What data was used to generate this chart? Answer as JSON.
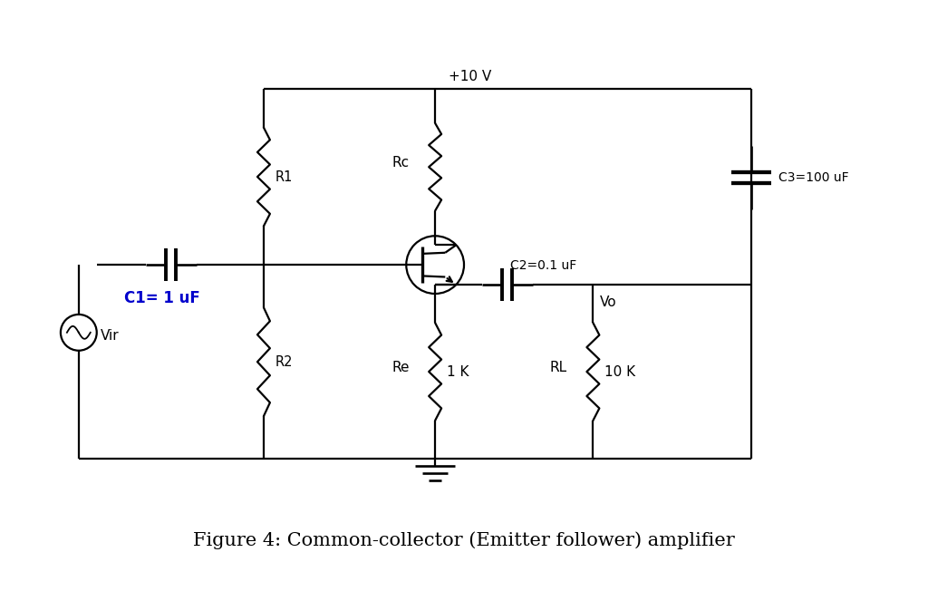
{
  "title": "Figure 4: Common-collector (Emitter follower) amplifier",
  "title_fontsize": 15,
  "bg_color": "#ffffff",
  "line_color": "#000000",
  "c1_label": "C1= 1 uF",
  "c2_label": "C2=0.1 uF",
  "c3_label": "C3=100 uF",
  "r1_label": "R1",
  "r2_label": "R2",
  "rc_label": "Rc",
  "re_label": "Re",
  "rl_label": "RL",
  "re_val": "1 K",
  "rl_val": "10 K",
  "vcc_label": "+10 V",
  "vir_label": "Vir",
  "vo_label": "Vo"
}
